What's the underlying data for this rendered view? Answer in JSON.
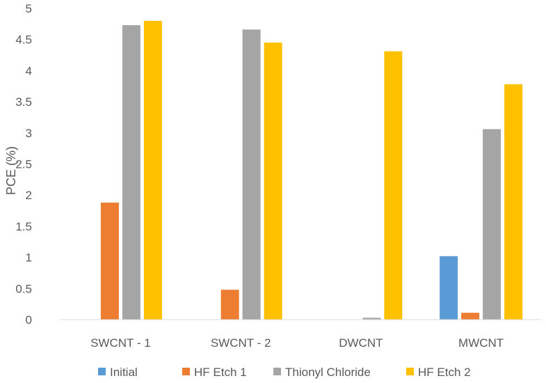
{
  "chart_data": {
    "type": "bar",
    "title": "",
    "xlabel": "",
    "ylabel": "PCE (%)",
    "ylim": [
      0,
      5
    ],
    "yticks": [
      "0",
      "0.5",
      "1",
      "1.5",
      "2",
      "2.5",
      "3",
      "3.5",
      "4",
      "4.5",
      "5"
    ],
    "grid": false,
    "legend": "bottom",
    "categories": [
      "SWCNT - 1",
      "SWCNT - 2",
      "DWCNT",
      "MWCNT"
    ],
    "series": [
      {
        "name": "Initial",
        "color": "#5b9bd5",
        "values": [
          0,
          0,
          0,
          1.02
        ]
      },
      {
        "name": "HF Etch 1",
        "color": "#ed7d31",
        "values": [
          1.88,
          0.48,
          0,
          0.11
        ]
      },
      {
        "name": "Thionyl Chloride",
        "color": "#a5a5a5",
        "values": [
          4.73,
          4.66,
          0.03,
          3.06
        ]
      },
      {
        "name": "HF Etch 2",
        "color": "#ffc000",
        "values": [
          4.8,
          4.45,
          4.31,
          3.78
        ]
      }
    ]
  }
}
